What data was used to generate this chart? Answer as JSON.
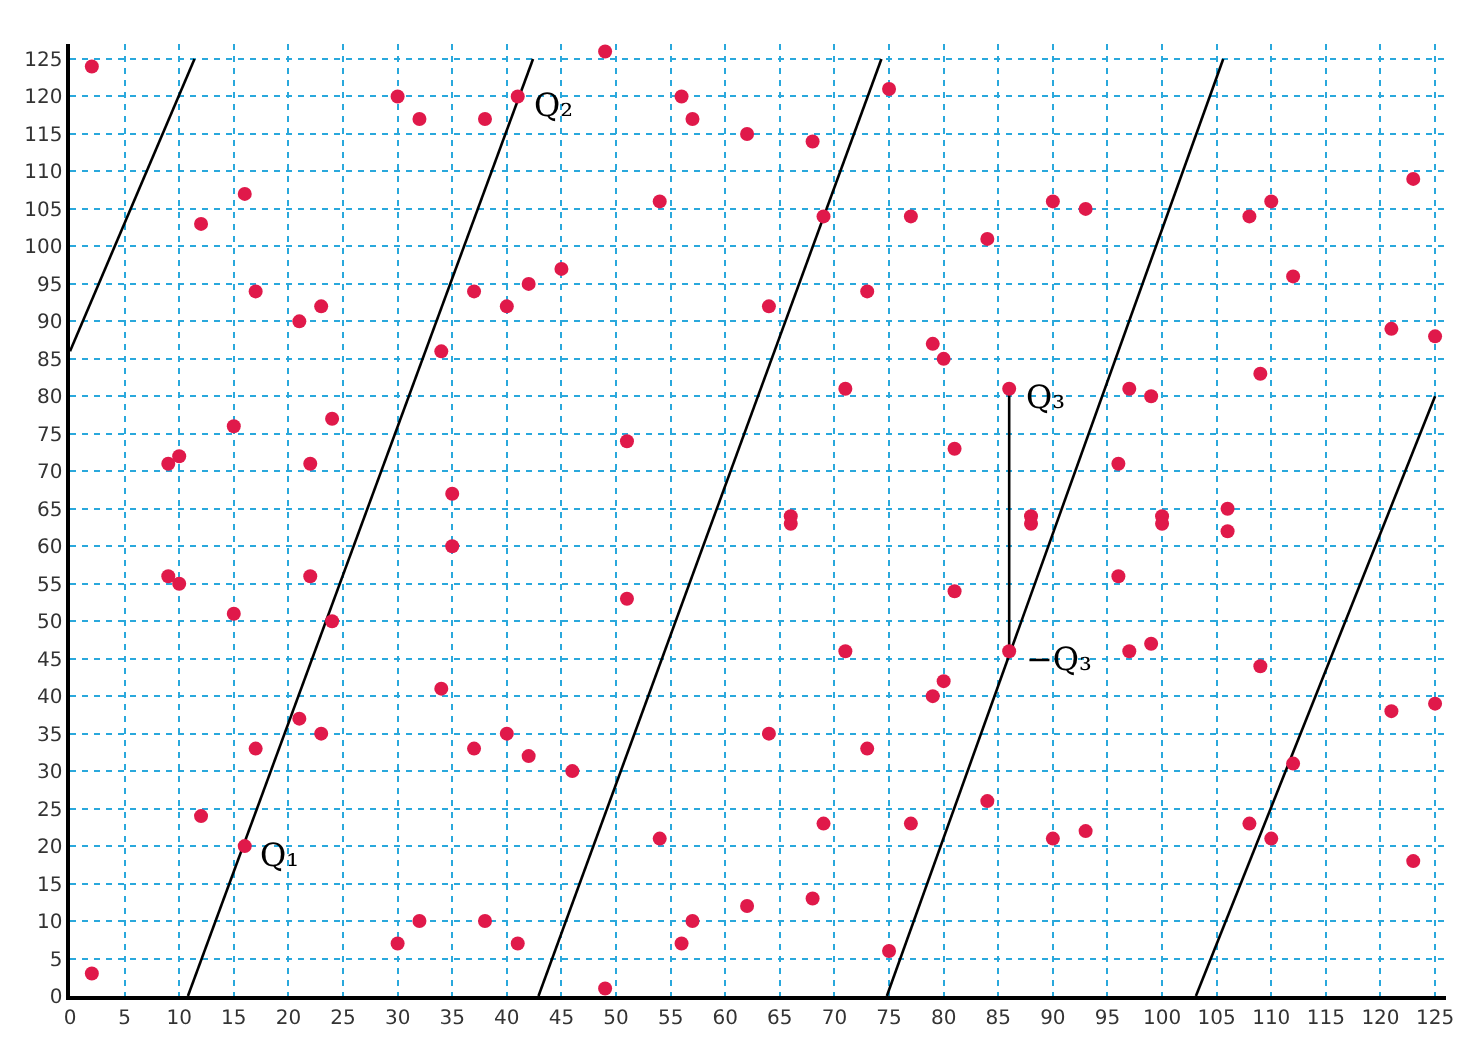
{
  "chart_data": {
    "type": "scatter",
    "xlim": [
      0,
      126
    ],
    "ylim": [
      0,
      127
    ],
    "xticks": [
      0,
      5,
      10,
      15,
      20,
      25,
      30,
      35,
      40,
      45,
      50,
      55,
      60,
      65,
      70,
      75,
      80,
      85,
      90,
      95,
      100,
      105,
      110,
      115,
      120,
      125
    ],
    "yticks": [
      0,
      5,
      10,
      15,
      20,
      25,
      30,
      35,
      40,
      45,
      50,
      55,
      60,
      65,
      70,
      75,
      80,
      85,
      90,
      95,
      100,
      105,
      110,
      115,
      120,
      125
    ],
    "grid": true,
    "marker": "circle",
    "series": [
      {
        "color": "#e0194a",
        "x": [
          2,
          2,
          9,
          9,
          10,
          10,
          12,
          12,
          15,
          15,
          16,
          16,
          17,
          17,
          21,
          21,
          22,
          22,
          23,
          23,
          24,
          24,
          30,
          30,
          32,
          32,
          34,
          34,
          35,
          35,
          37,
          37,
          38,
          38,
          40,
          40,
          41,
          41,
          42,
          42,
          45,
          46,
          49,
          49,
          51,
          51,
          54,
          54,
          56,
          56,
          57,
          57,
          62,
          62,
          64,
          64,
          66,
          66,
          68,
          68,
          69,
          69,
          71,
          71,
          73,
          73,
          75,
          75,
          77,
          77,
          79,
          79,
          80,
          80,
          81,
          81,
          84,
          84,
          86,
          86,
          88,
          88,
          90,
          90,
          93,
          93,
          96,
          96,
          97,
          97,
          99,
          99,
          100,
          100,
          106,
          106,
          108,
          108,
          109,
          109,
          110,
          110,
          112,
          112,
          121,
          121,
          123,
          123,
          125,
          125
        ],
        "values": [
          124,
          3,
          71,
          56,
          72,
          55,
          103,
          24,
          76,
          51,
          107,
          20,
          94,
          33,
          90,
          37,
          71,
          56,
          92,
          35,
          77,
          50,
          120,
          7,
          117,
          10,
          86,
          41,
          67,
          60,
          94,
          33,
          117,
          10,
          92,
          35,
          120,
          7,
          95,
          32,
          97,
          30,
          126,
          1,
          74,
          53,
          106,
          21,
          120,
          7,
          117,
          10,
          115,
          12,
          92,
          35,
          64,
          63,
          114,
          13,
          104,
          23,
          81,
          46,
          94,
          33,
          121,
          6,
          104,
          23,
          87,
          40,
          85,
          42,
          73,
          54,
          101,
          26,
          81,
          46,
          64,
          63,
          106,
          21,
          105,
          22,
          71,
          56,
          81,
          46,
          80,
          47,
          64,
          63,
          65,
          62,
          104,
          23,
          83,
          44,
          106,
          21,
          96,
          31,
          89,
          38,
          109,
          18,
          88,
          39
        ]
      },
      {
        "type": "line",
        "color": "#000000",
        "marker": "none",
        "x": [
          0,
          11.4,
          null,
          10.8,
          42.4,
          null,
          42.9,
          74.3,
          null,
          74.8,
          105.6,
          null,
          103.1,
          125
        ],
        "values": [
          86,
          125,
          null,
          0,
          125,
          null,
          0,
          125,
          null,
          0,
          125,
          null,
          0,
          80
        ]
      },
      {
        "type": "line",
        "color": "#000000",
        "marker": "none",
        "x": [
          86,
          86
        ],
        "values": [
          46,
          81
        ]
      }
    ],
    "annotations": [
      {
        "text": "Q₁",
        "x": 16,
        "y": 20
      },
      {
        "text": "Q₂",
        "x": 41,
        "y": 120
      },
      {
        "text": "Q₃",
        "x": 86,
        "y": 81
      },
      {
        "text": "−Q₃",
        "x": 86,
        "y": 46
      }
    ]
  }
}
